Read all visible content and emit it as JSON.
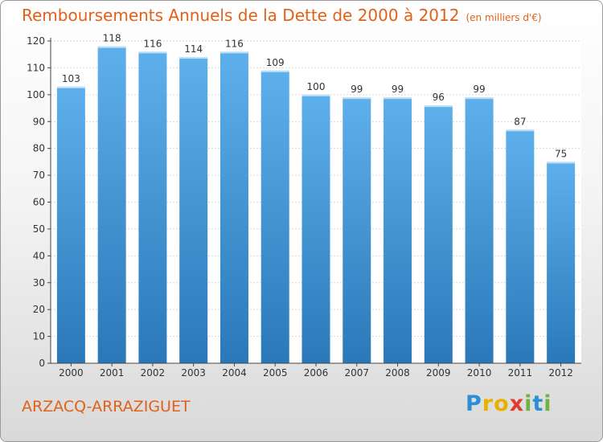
{
  "title": "Remboursements Annuels de la Dette de 2000 à 2012",
  "unit": "(en milliers d'€)",
  "commune": "ARZACQ-ARRAZIGUET",
  "logo": {
    "letters": [
      "P",
      "r",
      "o",
      "x",
      "i",
      "t",
      "i"
    ],
    "colors": [
      "#2c8fd6",
      "#e8b100",
      "#e8b100",
      "#e23a2e",
      "#6fb43f",
      "#2c8fd6",
      "#6fb43f"
    ]
  },
  "colors": {
    "bar_top": "#5eb0ec",
    "bar_bottom": "#2a78b8",
    "title": "#e0611a"
  },
  "chart_data": {
    "type": "bar",
    "categories": [
      "2000",
      "2001",
      "2002",
      "2003",
      "2004",
      "2005",
      "2006",
      "2007",
      "2008",
      "2009",
      "2010",
      "2011",
      "2012"
    ],
    "values": [
      103,
      118,
      116,
      114,
      116,
      109,
      100,
      99,
      99,
      96,
      99,
      87,
      75
    ],
    "title": "Remboursements Annuels de la Dette de 2000 à 2012",
    "xlabel": "",
    "ylabel": "",
    "ylim": [
      0,
      120
    ],
    "yticks": [
      0,
      10,
      20,
      30,
      40,
      50,
      60,
      70,
      80,
      90,
      100,
      110,
      120
    ],
    "grid": true,
    "legend": "none"
  }
}
